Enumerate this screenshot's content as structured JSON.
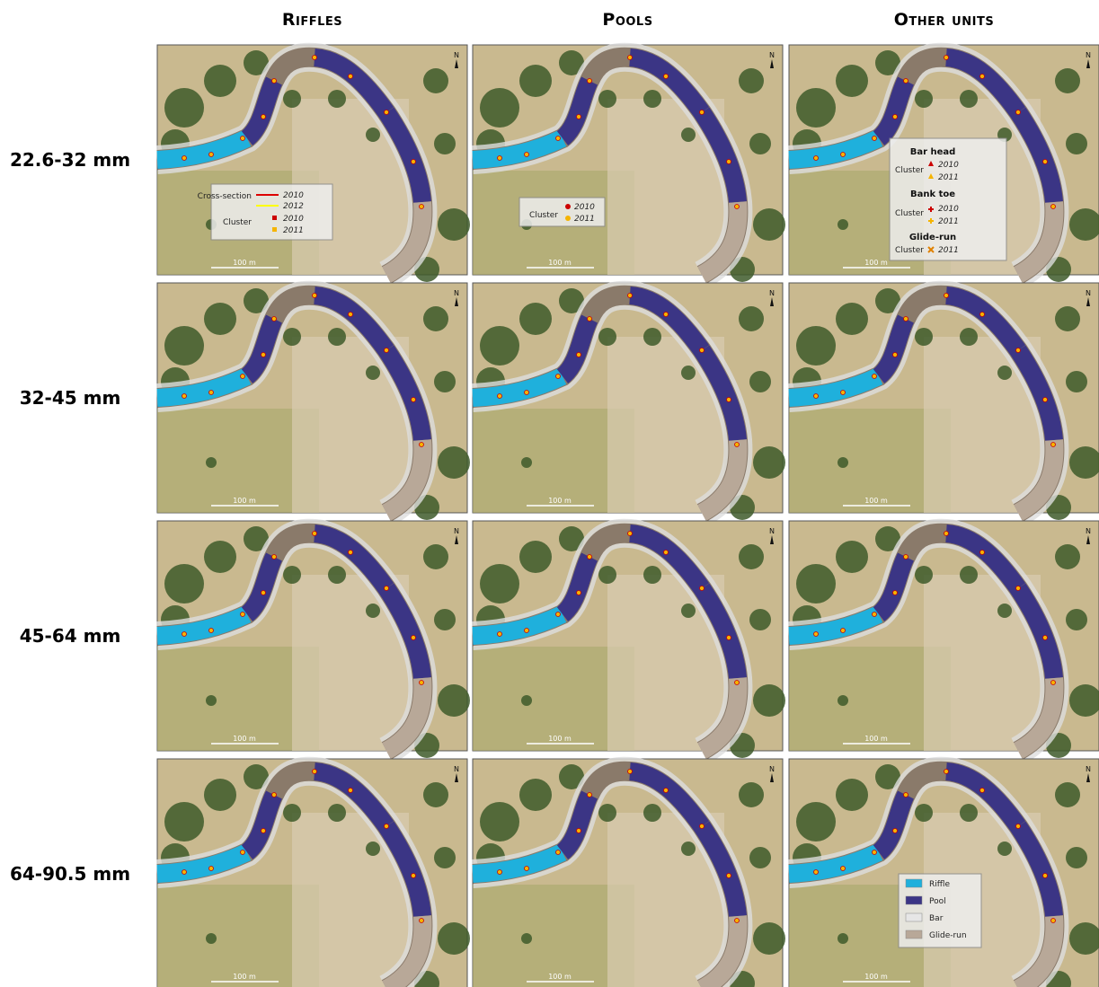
{
  "columns": [
    "Riffles",
    "Pools",
    "Other units"
  ],
  "rows": [
    "22.6-32 mm",
    "32-45 mm",
    "45-64 mm",
    "64-90.5 mm"
  ],
  "north": "N",
  "scale": "100 m",
  "legend_riffles": {
    "cross_section": "Cross-section",
    "cs_2010": "2010",
    "cs_2012": "2012",
    "cluster": "Cluster",
    "cl_2010": "2010",
    "cl_2011": "2011"
  },
  "legend_pools": {
    "cluster": "Cluster",
    "cl_2010": "2010",
    "cl_2011": "2011"
  },
  "legend_other": {
    "bar_head": "Bar head",
    "bh_cluster": "Cluster",
    "bh_2010": "2010",
    "bh_2011": "2011",
    "bank_toe": "Bank toe",
    "bt_cluster": "Cluster",
    "bt_2010": "2010",
    "bt_2011": "2011",
    "glide_run": "Glide-run",
    "gr_cluster": "Cluster",
    "gr_2011": "2011"
  },
  "legend_units": [
    "Riffle",
    "Pool",
    "Bar",
    "Glide-run"
  ]
}
